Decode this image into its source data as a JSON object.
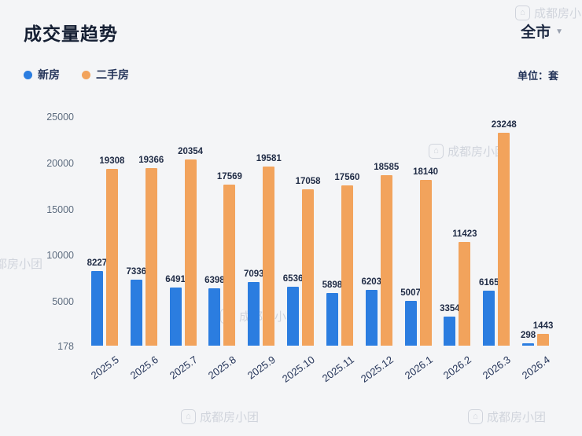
{
  "header": {
    "title": "成交量趋势",
    "scope": "全市",
    "caret": "▼"
  },
  "legend": {
    "items": [
      {
        "label": "新房",
        "color": "#2b7de0"
      },
      {
        "label": "二手房",
        "color": "#f2a35c"
      }
    ]
  },
  "unit_label": "单位：套",
  "watermark": {
    "text": "成都房小团",
    "icon": "house-logo-icon"
  },
  "colors": {
    "new_home": "#2b7de0",
    "resale_home": "#f2a35c",
    "title_text": "#151f33",
    "value_label": "#1f2b45",
    "axis_tick": "#5d6c7f"
  },
  "chart_data": {
    "type": "bar",
    "title": "成交量趋势",
    "categories": [
      "2025.5",
      "2025.6",
      "2025.7",
      "2025.8",
      "2025.9",
      "2025.10",
      "2025.11",
      "2025.12",
      "2026.1",
      "2026.2",
      "2026.3",
      "2026.4"
    ],
    "series": [
      {
        "name": "新房",
        "color": "#2b7de0",
        "values": [
          8227,
          7336,
          6491,
          6398,
          7093,
          6536,
          5898,
          6203,
          5007,
          3354,
          6165,
          298
        ]
      },
      {
        "name": "二手房",
        "color": "#f2a35c",
        "values": [
          19308,
          19366,
          20354,
          17569,
          19581,
          17058,
          17560,
          18585,
          18140,
          11423,
          23248,
          1443
        ]
      }
    ],
    "yticks": [
      178,
      5000,
      10000,
      15000,
      20000,
      25000
    ],
    "ymin": 178,
    "ymax": 25000,
    "ylabel": "套",
    "xlabel": "",
    "grid": false,
    "legend_position": "top-left",
    "value_labels": true
  }
}
